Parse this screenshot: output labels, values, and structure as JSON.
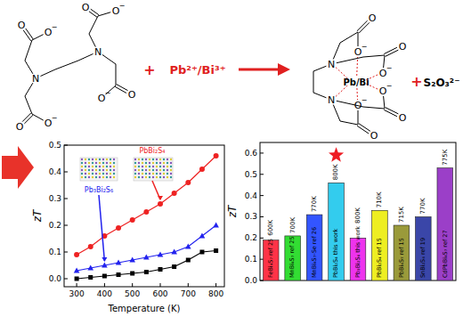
{
  "scheme": {
    "plus": "+",
    "metal_ions": "Pb²⁺/Bi³⁺",
    "complex_metal": "Pb/Bi",
    "byproduct": "S₂O₃²⁻",
    "oxygen": "O",
    "nitrogen": "N",
    "charge": "−"
  },
  "chart_data": [
    {
      "type": "line",
      "y_label": "zT",
      "x_label": "Temperature (K)",
      "x": [
        300,
        350,
        400,
        450,
        500,
        550,
        600,
        650,
        700,
        750,
        800
      ],
      "xlim": [
        255,
        830
      ],
      "xticks": [
        300,
        400,
        500,
        600,
        700,
        800
      ],
      "ylim": [
        -0.03,
        0.5
      ],
      "yticks": [
        {
          "value": 0,
          "label": "0.0"
        },
        0.1,
        0.2,
        0.3,
        0.4,
        0.5
      ],
      "series": [
        {
          "color": "#000000",
          "marker": "square",
          "values": [
            0.0,
            0.005,
            0.01,
            0.015,
            0.02,
            0.025,
            0.035,
            0.045,
            0.07,
            0.1,
            0.105
          ]
        },
        {
          "name": "Pb₃Bi₂S₆",
          "color": "#2222ee",
          "marker": "triangle",
          "values": [
            0.03,
            0.04,
            0.05,
            0.06,
            0.07,
            0.08,
            0.09,
            0.1,
            0.12,
            0.16,
            0.2
          ]
        },
        {
          "name": "PbBi₂S₄",
          "color": "#ee2222",
          "marker": "circle",
          "values": [
            0.09,
            0.12,
            0.16,
            0.19,
            0.22,
            0.25,
            0.28,
            0.32,
            0.36,
            0.41,
            0.46
          ]
        }
      ]
    },
    {
      "type": "bar",
      "y_label": "zT",
      "categories": [
        "FeBi₄S₇ ref 25",
        "MnBi₄S₇ ref 25",
        "MnBi₄S₇-Se ref 26",
        "PbBi₂S₄ this work",
        "Pb₃Bi₂S₆ this work",
        "PbBi₂S₄ ref 15",
        "PbBi₄S₇ ref 15",
        "SnBi₂S₄ ref 19",
        "CdPbBi₄S₇ ref 27"
      ],
      "values": [
        0.19,
        0.21,
        0.31,
        0.46,
        0.2,
        0.33,
        0.26,
        0.3,
        0.53
      ],
      "colors": [
        "#ff3347",
        "#33dd33",
        "#3355ff",
        "#33ccee",
        "#ee33ee",
        "#eeee22",
        "#9a9a3a",
        "#3a46a8",
        "#9b3fc8"
      ],
      "annotations": [
        "600K",
        "700K",
        "770K",
        "800K",
        "800K",
        "710K",
        "715K",
        "770K",
        "775K"
      ],
      "highlight": "PbBi₂S₄ this work",
      "ylim": [
        0,
        0.65
      ],
      "yticks": [
        {
          "value": 0,
          "label": "0.0"
        },
        0.1,
        0.2,
        0.3,
        0.4,
        0.5,
        0.6
      ]
    }
  ]
}
